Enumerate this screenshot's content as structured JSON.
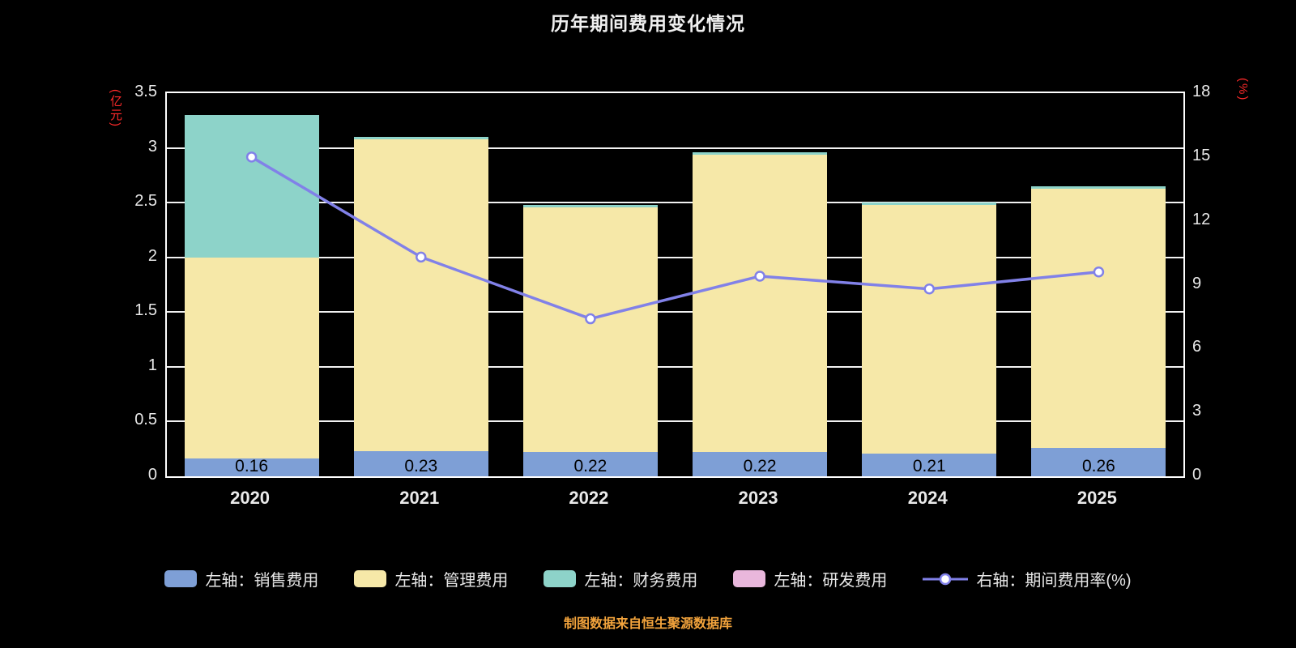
{
  "title": "历年期间费用变化情况",
  "source_note": "制图数据来自恒生聚源数据库",
  "left_axis": {
    "unit": "(亿元)",
    "ticks": [
      "3.5",
      "3",
      "2.5",
      "2",
      "1.5",
      "1",
      "0.5",
      "0"
    ],
    "min": 0,
    "max": 3.5
  },
  "right_axis": {
    "unit": "(%)",
    "ticks": [
      "18",
      "15",
      "12",
      "9",
      "6",
      "3",
      "0"
    ],
    "min": 0,
    "max": 18
  },
  "legend": {
    "items": [
      {
        "key": "sales",
        "type": "swatch",
        "label": "左轴：销售费用",
        "color": "#7e9fd6"
      },
      {
        "key": "management",
        "type": "swatch",
        "label": "左轴：管理费用",
        "color": "#f6e8a8"
      },
      {
        "key": "finance",
        "type": "swatch",
        "label": "左轴：财务费用",
        "color": "#8dd3c9"
      },
      {
        "key": "rnd",
        "type": "swatch",
        "label": "左轴：研发费用",
        "color": "#e9b7dc"
      },
      {
        "key": "rate",
        "type": "line",
        "label": "右轴：期间费用率(%)",
        "color": "#8181e8"
      }
    ]
  },
  "chart_data": {
    "type": "bar",
    "stacked": true,
    "categories": [
      "2020",
      "2021",
      "2022",
      "2023",
      "2024",
      "2025"
    ],
    "series": [
      {
        "key": "sales",
        "name": "左轴：销售费用",
        "color": "#7e9fd6",
        "values": [
          0.16,
          0.23,
          0.22,
          0.22,
          0.21,
          0.26
        ]
      },
      {
        "key": "management",
        "name": "左轴：管理费用",
        "color": "#f6e8a8",
        "values": [
          1.84,
          2.85,
          2.24,
          2.72,
          2.27,
          2.37
        ]
      },
      {
        "key": "finance",
        "name": "左轴：财务费用",
        "color": "#8dd3c9",
        "values": [
          1.3,
          0.02,
          0.02,
          0.02,
          0.02,
          0.02
        ]
      },
      {
        "key": "rnd",
        "name": "左轴：研发费用",
        "color": "#e9b7dc",
        "values": [
          0,
          0,
          0,
          0,
          0,
          0
        ]
      }
    ],
    "line_series": {
      "key": "rate",
      "name": "右轴：期间费用率(%)",
      "axis": "right",
      "color": "#8181e8",
      "values": [
        15.0,
        10.3,
        7.4,
        9.4,
        8.8,
        9.6
      ]
    },
    "bar_labels": [
      "0.16",
      "0.23",
      "0.22",
      "0.22",
      "0.21",
      "0.26"
    ],
    "ylim_left": [
      0,
      3.5
    ],
    "ylim_right": [
      0,
      18
    ],
    "grid": true,
    "legend_position": "bottom"
  }
}
